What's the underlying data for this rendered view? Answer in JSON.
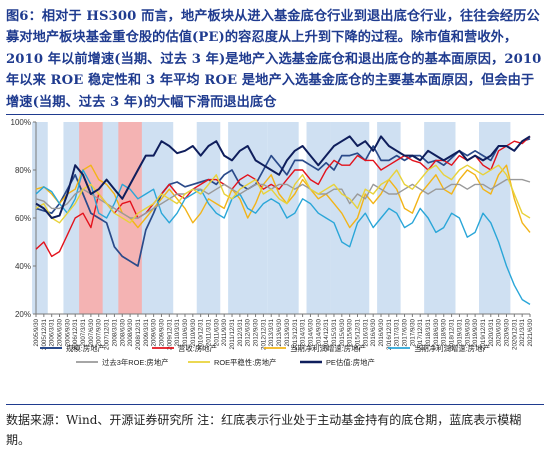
{
  "caption": "图6：相对于 HS300 而言，地产板块从进入基金底仓行业到退出底仓行业，往往会经历公募对地产板块基金重仓股的估值(PE)的容忍度从上升到下降的过程。除市值和营收外，2010 年以前增速(当期、过去 3 年)是地产入选基金底仓和退出底仓的基本面原因，2010 年以来 ROE 稳定性和 3 年平均 ROE 是地产入选基金底仓的主要基本面原因，但会由于增速(当期、过去 3 年)的大幅下滑而退出底仓",
  "source": "数据来源：Wind、开源证券研究所  注：红底表示行业处于主动基金持有的底仓期，蓝底表示模糊期。",
  "chart_data": {
    "type": "line",
    "title": "",
    "xlabel": "",
    "ylabel": "",
    "ylim": [
      20,
      100
    ],
    "yticks": [
      "20%",
      "40%",
      "60%",
      "80%",
      "100%"
    ],
    "grid": false,
    "legend_position": "bottom",
    "x": [
      "2005/9/30",
      "2005/12/31",
      "2006/3/31",
      "2006/6/30",
      "2006/9/30",
      "2006/12/31",
      "2007/3/31",
      "2007/6/30",
      "2007/9/30",
      "2007/12/31",
      "2008/3/31",
      "2008/6/30",
      "2008/9/30",
      "2008/12/31",
      "2009/3/31",
      "2009/6/30",
      "2009/9/30",
      "2009/12/31",
      "2010/3/31",
      "2010/6/30",
      "2010/9/30",
      "2010/12/31",
      "2011/3/31",
      "2011/6/30",
      "2011/9/30",
      "2011/12/31",
      "2012/3/31",
      "2012/6/30",
      "2012/9/30",
      "2012/12/31",
      "2013/3/31",
      "2013/6/30",
      "2013/9/30",
      "2013/12/31",
      "2014/3/31",
      "2014/6/30",
      "2014/9/30",
      "2014/12/31",
      "2015/3/31",
      "2015/6/30",
      "2015/9/30",
      "2015/12/31",
      "2016/3/31",
      "2016/6/30",
      "2016/9/30",
      "2016/12/31",
      "2017/3/31",
      "2017/6/30",
      "2017/9/30",
      "2017/12/31",
      "2018/3/31",
      "2018/6/30",
      "2018/9/30",
      "2018/12/31",
      "2019/3/31",
      "2019/6/30",
      "2019/9/30",
      "2019/12/31",
      "2020/3/31",
      "2020/6/30",
      "2020/9/30",
      "2020/12/31",
      "2021/3/31",
      "2021/6/30"
    ],
    "x_tick_labels": [
      "2005/9/30",
      "2005/12/31",
      "2006/3/31",
      "2006/6/30",
      "2006/9/30",
      "2006/12/31",
      "2007/3/31",
      "2007/6/30",
      "2007/9/30",
      "2007/12/31",
      "2008/3/31",
      "2008/6/30",
      "2008/9/30",
      "2008/12/31",
      "2009/3/31",
      "2009/6/30",
      "2009/9/30",
      "2009/12/31",
      "2010/3/31",
      "2010/6/30",
      "2010/9/30",
      "2010/12/31",
      "2011/3/31",
      "2011/6/30",
      "2011/9/30",
      "2011/12/31",
      "2012/3/31",
      "2012/6/30",
      "2012/9/30",
      "2012/12/31",
      "2013/3/31",
      "2013/6/30",
      "2013/9/30",
      "2013/12/31",
      "2014/3/31",
      "2014/6/30",
      "2014/9/30",
      "2014/12/31",
      "2015/3/31",
      "2015/6/30",
      "2015/9/30",
      "2015/12/31",
      "2016/3/31",
      "2016/6/30",
      "2016/9/30",
      "2016/12/31",
      "2017/3/31",
      "2017/6/30",
      "2017/9/30",
      "2017/12/31",
      "2018/3/31",
      "2018/6/30",
      "2018/9/30",
      "2018/12/31",
      "2019/3/31",
      "2019/6/30",
      "2019/9/30",
      "2019/12/31",
      "2020/3/31",
      "2020/6/30",
      "2020/9/30",
      "2020/12/31",
      "2021/3/31",
      "2021/6/30"
    ],
    "bands": [
      {
        "kind": "blue",
        "start": "2005/9/30",
        "end": "2005/12/31"
      },
      {
        "kind": "blue",
        "start": "2006/9/30",
        "end": "2007/3/31"
      },
      {
        "kind": "red",
        "start": "2007/3/31",
        "end": "2007/12/31"
      },
      {
        "kind": "blue",
        "start": "2007/12/31",
        "end": "2008/6/30"
      },
      {
        "kind": "red",
        "start": "2008/6/30",
        "end": "2009/3/31"
      },
      {
        "kind": "blue",
        "start": "2009/3/31",
        "end": "2009/12/31"
      },
      {
        "kind": "blue",
        "start": "2010/12/31",
        "end": "2011/6/30"
      },
      {
        "kind": "blue",
        "start": "2011/12/31",
        "end": "2012/12/31"
      },
      {
        "kind": "blue",
        "start": "2013/3/31",
        "end": "2013/12/31"
      },
      {
        "kind": "blue",
        "start": "2014/6/30",
        "end": "2014/12/31"
      },
      {
        "kind": "blue",
        "start": "2015/3/31",
        "end": "2016/3/31"
      },
      {
        "kind": "blue",
        "start": "2016/9/30",
        "end": "2017/3/31"
      },
      {
        "kind": "blue",
        "start": "2018/3/31",
        "end": "2018/12/31"
      },
      {
        "kind": "blue",
        "start": "2019/12/31",
        "end": "2020/9/30"
      }
    ],
    "series": [
      {
        "name": "规模:房地产",
        "color": "#2a4a8a",
        "width": 1.7,
        "values": [
          64,
          63,
          62,
          66,
          72,
          78,
          70,
          62,
          60,
          58,
          48,
          44,
          42,
          40,
          55,
          62,
          70,
          74,
          75,
          73,
          74,
          75,
          76,
          74,
          78,
          80,
          74,
          72,
          74,
          80,
          86,
          82,
          78,
          84,
          84,
          82,
          80,
          83,
          80,
          86,
          86,
          87,
          84,
          90,
          84,
          84,
          86,
          84,
          86,
          86,
          83,
          84,
          82,
          85,
          88,
          86,
          88,
          86,
          84,
          90,
          90,
          88,
          92,
          93
        ]
      },
      {
        "name": "营收:房地产",
        "color": "#e3121c",
        "width": 1.4,
        "values": [
          47,
          50,
          44,
          46,
          53,
          60,
          62,
          56,
          70,
          66,
          62,
          66,
          67,
          60,
          62,
          66,
          70,
          74,
          70,
          68,
          72,
          74,
          76,
          76,
          74,
          72,
          76,
          78,
          76,
          72,
          74,
          72,
          76,
          80,
          80,
          76,
          74,
          80,
          84,
          82,
          82,
          86,
          84,
          84,
          80,
          82,
          84,
          86,
          84,
          83,
          80,
          84,
          84,
          82,
          86,
          84,
          86,
          82,
          80,
          88,
          90,
          92,
          91,
          94
        ]
      },
      {
        "name": "当期净利润增速:房地产",
        "color": "#f2b418",
        "width": 1.4,
        "values": [
          72,
          73,
          70,
          66,
          70,
          72,
          80,
          82,
          76,
          74,
          70,
          62,
          60,
          56,
          60,
          64,
          68,
          72,
          68,
          64,
          58,
          62,
          68,
          66,
          64,
          72,
          68,
          60,
          66,
          74,
          78,
          70,
          66,
          70,
          76,
          72,
          68,
          70,
          66,
          62,
          56,
          60,
          70,
          66,
          70,
          76,
          72,
          64,
          62,
          70,
          74,
          78,
          72,
          70,
          76,
          80,
          78,
          72,
          70,
          78,
          82,
          68,
          58,
          54
        ]
      },
      {
        "name": "当期净利润增速:房地产",
        "color": "#2aa6d8",
        "width": 1.4,
        "values": [
          70,
          73,
          71,
          66,
          62,
          68,
          80,
          74,
          62,
          60,
          66,
          74,
          72,
          68,
          70,
          72,
          62,
          58,
          62,
          68,
          70,
          72,
          66,
          62,
          60,
          68,
          70,
          64,
          62,
          66,
          68,
          66,
          60,
          62,
          68,
          66,
          62,
          60,
          58,
          50,
          48,
          58,
          62,
          56,
          60,
          64,
          62,
          56,
          58,
          64,
          60,
          54,
          56,
          62,
          60,
          52,
          54,
          62,
          58,
          50,
          40,
          32,
          26,
          24
        ]
      },
      {
        "name": "过去3年ROE:房地产",
        "color": "#9a9a9a",
        "width": 1.4,
        "values": [
          68,
          67,
          64,
          64,
          66,
          70,
          72,
          70,
          68,
          66,
          64,
          62,
          60,
          60,
          62,
          64,
          66,
          68,
          70,
          70,
          72,
          72,
          70,
          72,
          74,
          72,
          70,
          72,
          74,
          74,
          72,
          74,
          74,
          72,
          74,
          72,
          70,
          70,
          72,
          72,
          66,
          70,
          68,
          74,
          72,
          70,
          70,
          72,
          74,
          72,
          70,
          72,
          72,
          74,
          74,
          72,
          74,
          74,
          72,
          74,
          76,
          76,
          76,
          75
        ]
      },
      {
        "name": "ROE平稳性:房地产",
        "color": "#e8d23a",
        "width": 1.4,
        "values": [
          64,
          66,
          60,
          58,
          62,
          66,
          72,
          74,
          70,
          66,
          62,
          60,
          58,
          62,
          64,
          66,
          70,
          68,
          66,
          70,
          72,
          70,
          74,
          78,
          70,
          68,
          72,
          74,
          76,
          70,
          72,
          68,
          66,
          74,
          78,
          72,
          70,
          72,
          74,
          70,
          68,
          64,
          72,
          70,
          74,
          76,
          80,
          74,
          72,
          76,
          80,
          82,
          78,
          76,
          80,
          82,
          80,
          78,
          80,
          82,
          78,
          70,
          62,
          60
        ]
      },
      {
        "name": "PE估值:房地产",
        "color": "#0f1e5c",
        "width": 2.0,
        "values": [
          66,
          64,
          60,
          61,
          70,
          82,
          78,
          70,
          72,
          76,
          72,
          68,
          74,
          80,
          86,
          86,
          92,
          90,
          87,
          88,
          90,
          86,
          90,
          92,
          86,
          84,
          88,
          90,
          84,
          82,
          80,
          78,
          84,
          88,
          90,
          86,
          82,
          86,
          90,
          92,
          94,
          90,
          92,
          88,
          94,
          90,
          88,
          86,
          86,
          84,
          88,
          86,
          84,
          86,
          88,
          84,
          86,
          84,
          86,
          90,
          90,
          88,
          92,
          94
        ]
      }
    ]
  }
}
